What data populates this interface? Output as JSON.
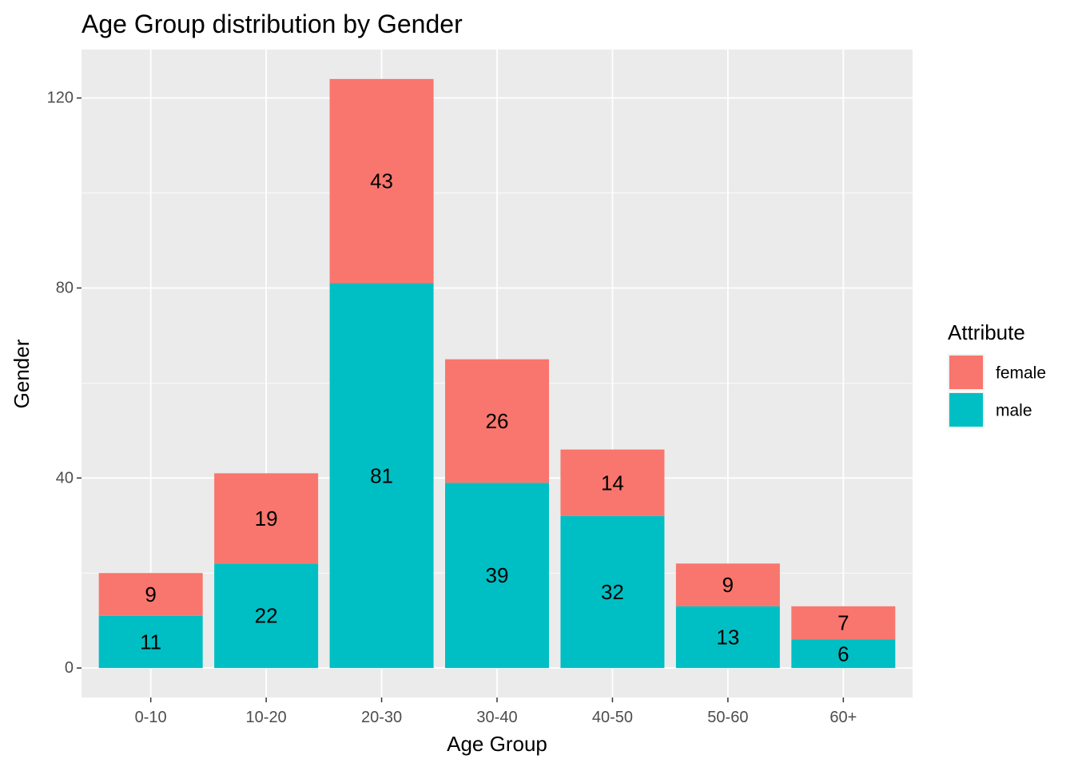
{
  "chart_data": {
    "type": "bar",
    "stacked": true,
    "title": "Age Group distribution by Gender",
    "xlabel": "Age Group",
    "ylabel": "Gender",
    "categories": [
      "0-10",
      "10-20",
      "20-30",
      "30-40",
      "40-50",
      "50-60",
      "60+"
    ],
    "series": [
      {
        "name": "male",
        "color": "#00BFC4",
        "values": [
          11,
          22,
          81,
          39,
          32,
          13,
          6
        ]
      },
      {
        "name": "female",
        "color": "#F8766D",
        "values": [
          9,
          19,
          43,
          26,
          14,
          9,
          7
        ]
      }
    ],
    "ylim": [
      -6.2,
      130.2
    ],
    "yticks": [
      0,
      40,
      80,
      120
    ],
    "ytick_labels": [
      "0",
      "40",
      "80",
      "120"
    ],
    "grid": true,
    "panel_background": "#EBEBEB",
    "legend": {
      "title": "Attribute",
      "placement": "right",
      "entries": [
        {
          "label": "female",
          "color": "#F8766D"
        },
        {
          "label": "male",
          "color": "#00BFC4"
        }
      ]
    }
  }
}
